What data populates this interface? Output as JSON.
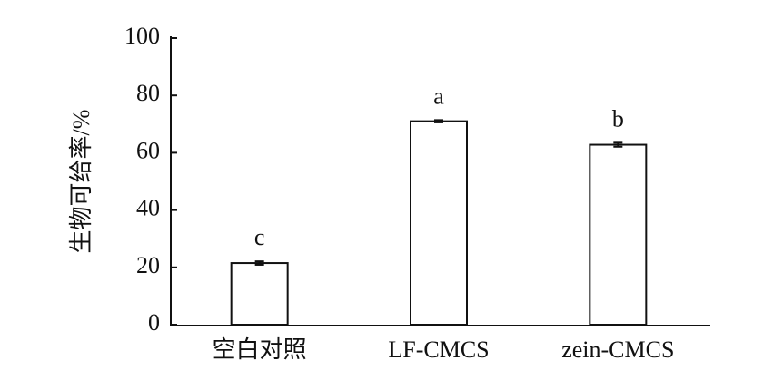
{
  "chart_data": {
    "type": "bar",
    "y_label": "生物可给率/%",
    "categories": [
      "空白对照",
      "LF-CMCS",
      "zein-CMCS"
    ],
    "values": [
      21.5,
      71,
      62.8
    ],
    "errors": [
      0.6,
      0.4,
      0.7
    ],
    "letters": [
      "c",
      "a",
      "b"
    ],
    "color": "#ffffff",
    "ylim": [
      0,
      100
    ],
    "yticks": [
      0,
      20,
      40,
      60,
      80,
      100
    ],
    "grid": false
  }
}
